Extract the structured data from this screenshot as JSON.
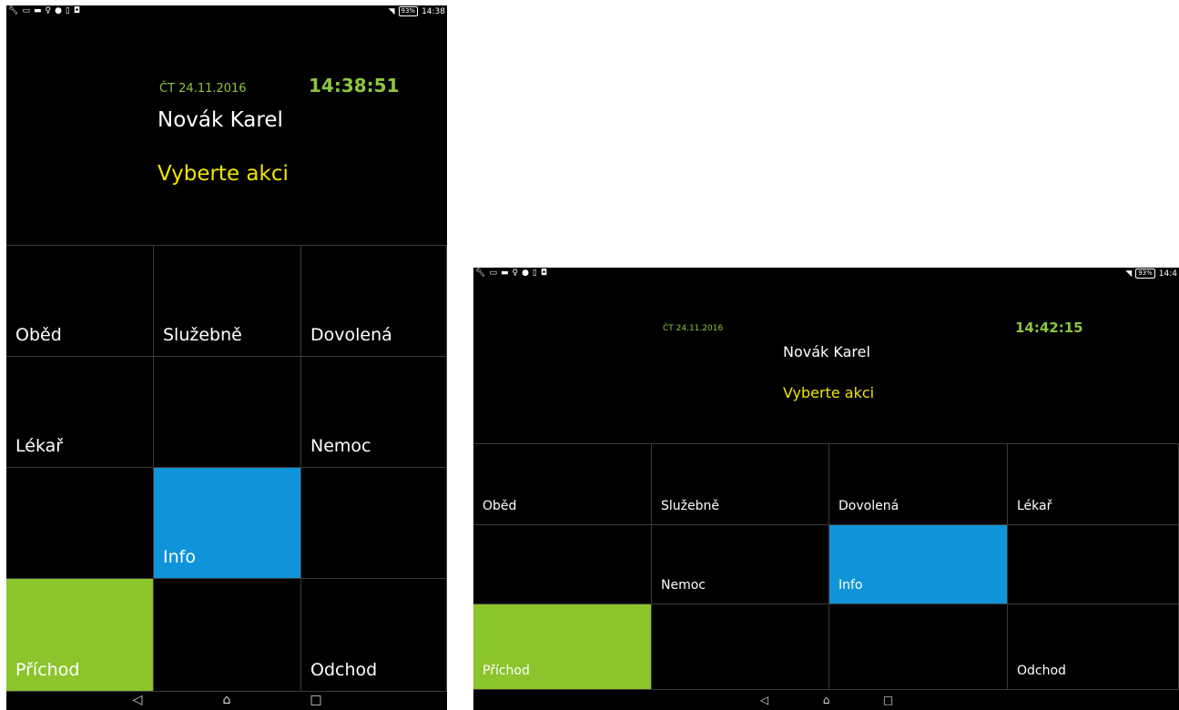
{
  "colors": {
    "background": "#000000",
    "accent_green": "#8dc63f",
    "accent_yellow": "#f2e600",
    "tile_blue": "#0f94d9",
    "tile_green": "#8cc42b"
  },
  "status_bar": {
    "icons": [
      "wrench-icon",
      "image-icon",
      "folder-icon",
      "bulb-icon",
      "info-icon",
      "sim-icon",
      "gallery-icon"
    ],
    "battery": "93%",
    "portrait_time": "14:38",
    "landscape_time": "14:4"
  },
  "portrait": {
    "date": "ČT 24.11.2016",
    "clock": "14:38:51",
    "name": "Novák Karel",
    "prompt": "Vyberte akci",
    "tiles": [
      {
        "label": "Oběd",
        "color": "black"
      },
      {
        "label": "Služebně",
        "color": "black"
      },
      {
        "label": "Dovolená",
        "color": "black"
      },
      {
        "label": "Lékař",
        "color": "black"
      },
      {
        "label": "",
        "color": "black"
      },
      {
        "label": "Nemoc",
        "color": "black"
      },
      {
        "label": "",
        "color": "black"
      },
      {
        "label": "Info",
        "color": "blue"
      },
      {
        "label": "",
        "color": "black"
      },
      {
        "label": "Příchod",
        "color": "green"
      },
      {
        "label": "",
        "color": "black"
      },
      {
        "label": "Odchod",
        "color": "black"
      }
    ]
  },
  "landscape": {
    "date": "ČT 24.11.2016",
    "clock": "14:42:15",
    "name": "Novák Karel",
    "prompt": "Vyberte akci",
    "tiles": [
      {
        "label": "Oběd",
        "color": "black"
      },
      {
        "label": "Služebně",
        "color": "black"
      },
      {
        "label": "Dovolená",
        "color": "black"
      },
      {
        "label": "Lékař",
        "color": "black"
      },
      {
        "label": "",
        "color": "black"
      },
      {
        "label": "Nemoc",
        "color": "black"
      },
      {
        "label": "Info",
        "color": "blue"
      },
      {
        "label": "",
        "color": "black"
      },
      {
        "label": "Příchod",
        "color": "green"
      },
      {
        "label": "",
        "color": "black"
      },
      {
        "label": "",
        "color": "black"
      },
      {
        "label": "Odchod",
        "color": "black"
      }
    ]
  },
  "navbar": {
    "back": "◁",
    "home": "⌂",
    "recents": "□"
  }
}
